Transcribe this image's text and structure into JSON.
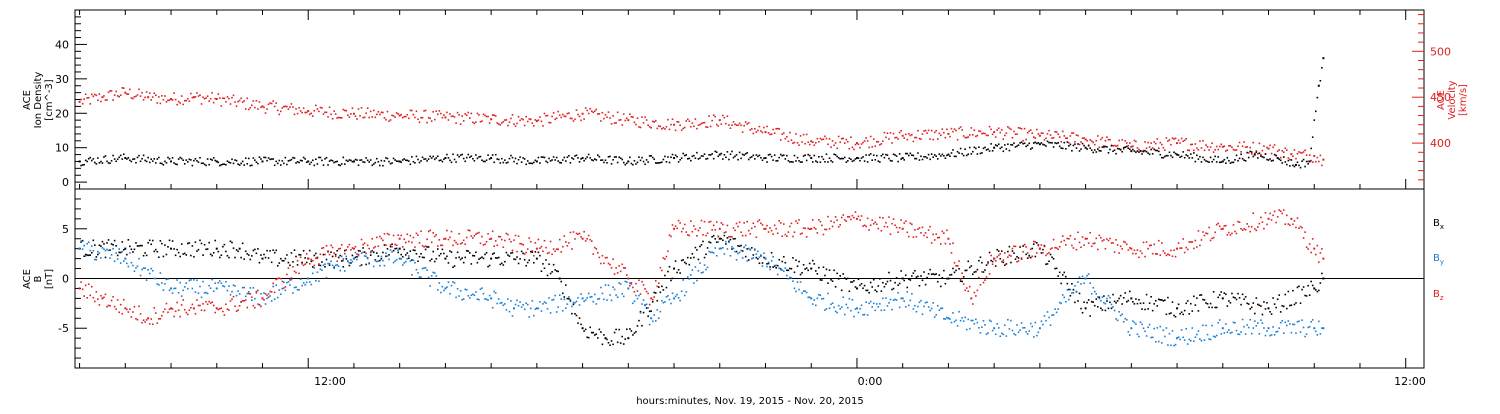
{
  "colors": {
    "bx": "#000000",
    "by": "#1a7fd6",
    "bz": "#e02020",
    "density": "#000000",
    "velocity": "#e02020",
    "axis": "#000000"
  },
  "xlabel": "hours:minutes, Nov. 19, 2015 - Nov. 20, 2015",
  "x_ticks": [
    "12:00",
    "0:00",
    "12:00"
  ],
  "chart_data": [
    {
      "type": "scatter",
      "panel": "top",
      "x_unit": "hours since 2015-11-19 00:00",
      "xlim": [
        6.9,
        36.4
      ],
      "ylabel_left": [
        "ACE",
        "Ion Density",
        "[cm^-3]"
      ],
      "ylabel_right": [
        "ACE",
        "Velocity",
        "[km/s]"
      ],
      "ylim_left": [
        -2,
        50
      ],
      "yticks_left": [
        "0",
        "10",
        "20",
        "30",
        "40"
      ],
      "ylim_right": [
        350,
        545
      ],
      "yticks_right": [
        "400",
        "450",
        "500"
      ],
      "series": [
        {
          "key": "density",
          "axis": "left",
          "x": [
            7.0,
            8.0,
            9.0,
            10.0,
            11.0,
            12.0,
            13.0,
            14.0,
            15.0,
            16.0,
            17.0,
            18.0,
            19.0,
            20.0,
            21.0,
            22.0,
            23.0,
            24.0,
            25.0,
            26.0,
            27.0,
            28.0,
            29.0,
            30.0,
            31.0,
            32.0,
            32.7,
            33.2,
            33.6,
            33.9,
            34.1,
            34.2
          ],
          "values": [
            6,
            7,
            6,
            6,
            6,
            6,
            6,
            6,
            7,
            7,
            6,
            7,
            6,
            7,
            8,
            7,
            7,
            7,
            7,
            8,
            10,
            11,
            10,
            9,
            8,
            6,
            8,
            7,
            5,
            6,
            28,
            36
          ]
        },
        {
          "key": "velocity",
          "axis": "right",
          "x": [
            7.0,
            7.5,
            8.0,
            8.5,
            9.0,
            9.5,
            10.0,
            11.0,
            12.0,
            13.0,
            14.0,
            15.0,
            16.0,
            17.0,
            18.0,
            19.0,
            20.0,
            21.0,
            22.0,
            23.0,
            24.0,
            25.0,
            26.0,
            27.0,
            28.0,
            29.0,
            30.0,
            31.0,
            32.0,
            33.0,
            33.5,
            34.0,
            34.2
          ],
          "values": [
            445,
            450,
            455,
            450,
            448,
            450,
            448,
            440,
            435,
            432,
            430,
            428,
            426,
            424,
            432,
            425,
            420,
            425,
            412,
            402,
            400,
            408,
            410,
            412,
            408,
            404,
            396,
            400,
            396,
            394,
            388,
            386,
            382
          ]
        }
      ]
    },
    {
      "type": "scatter",
      "panel": "bottom",
      "x_unit": "hours since 2015-11-19 00:00",
      "xlim": [
        6.9,
        36.4
      ],
      "ylabel_left": [
        "ACE",
        "B",
        "[nT]"
      ],
      "ylim": [
        -9,
        9
      ],
      "yticks": [
        "-5",
        "0",
        "5"
      ],
      "legend": [
        {
          "key": "bx",
          "label": "B",
          "sub": "x"
        },
        {
          "key": "by",
          "label": "B",
          "sub": "y"
        },
        {
          "key": "bz",
          "label": "B",
          "sub": "z"
        }
      ],
      "series": [
        {
          "key": "bx",
          "x": [
            7.0,
            8.0,
            9.0,
            10.0,
            10.5,
            11.0,
            12.0,
            13.0,
            14.0,
            15.0,
            16.0,
            17.0,
            17.5,
            18.0,
            18.5,
            19.0,
            20.0,
            21.0,
            22.0,
            23.0,
            24.0,
            25.0,
            26.0,
            27.0,
            28.0,
            29.0,
            30.0,
            31.0,
            32.0,
            33.0,
            34.0,
            34.2
          ],
          "values": [
            3,
            3,
            3,
            3,
            3,
            2,
            2,
            2,
            3,
            2,
            2,
            2,
            0,
            -5,
            -6,
            -6,
            1,
            4,
            2,
            1,
            -1,
            0,
            0,
            2,
            3,
            -3,
            -2,
            -3,
            -2,
            -3,
            -1,
            0
          ]
        },
        {
          "key": "by",
          "x": [
            7.0,
            8.0,
            9.0,
            10.0,
            11.0,
            12.0,
            13.0,
            14.0,
            15.0,
            16.0,
            16.5,
            17.0,
            18.0,
            19.0,
            19.5,
            20.0,
            21.0,
            22.0,
            23.0,
            24.0,
            25.0,
            26.0,
            27.0,
            28.0,
            29.0,
            30.0,
            31.0,
            32.0,
            33.0,
            34.0,
            34.2
          ],
          "values": [
            3,
            2,
            -1,
            -1,
            -2,
            0,
            2,
            2,
            -1,
            -2,
            -3,
            -3,
            -2,
            -1,
            -4,
            -2,
            3,
            2,
            -2,
            -3,
            -2,
            -4,
            -5,
            -5,
            0,
            -5,
            -6,
            -5,
            -5,
            -5,
            -5
          ]
        },
        {
          "key": "bz",
          "x": [
            7.0,
            7.5,
            8.0,
            8.5,
            9.0,
            9.5,
            10.0,
            11.0,
            12.0,
            13.0,
            14.0,
            15.0,
            16.0,
            17.0,
            18.0,
            19.0,
            19.5,
            20.0,
            21.0,
            22.0,
            23.0,
            24.0,
            25.0,
            26.0,
            26.5,
            27.0,
            28.0,
            29.0,
            30.0,
            31.0,
            32.0,
            33.0,
            33.5,
            34.0,
            34.2
          ],
          "values": [
            -1,
            -2,
            -3,
            -4,
            -3,
            -3,
            -3,
            -2,
            2,
            3,
            4,
            4,
            4,
            3,
            4,
            0,
            -2,
            5,
            5,
            5,
            5,
            6,
            5,
            4,
            -2,
            2,
            3,
            4,
            3,
            3,
            5,
            6,
            6,
            3,
            2
          ]
        }
      ]
    }
  ]
}
